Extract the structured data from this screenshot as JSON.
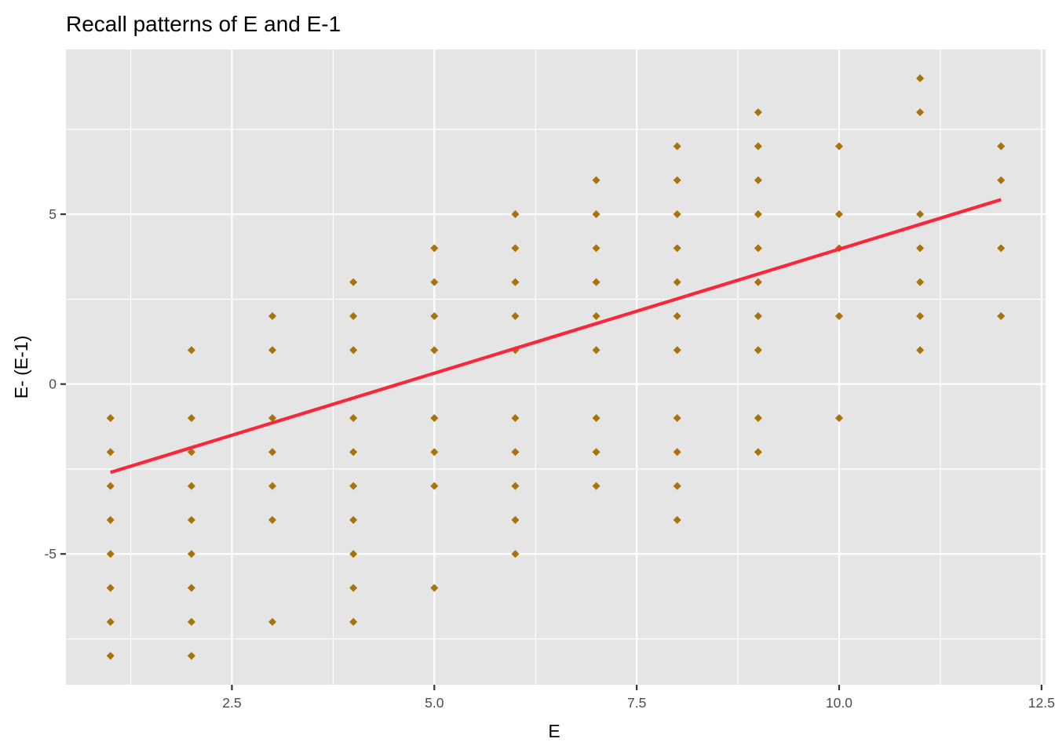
{
  "chart_data": {
    "type": "scatter",
    "title": "Recall patterns of E and E-1",
    "xlabel": "E",
    "ylabel": "E- (E-1)",
    "xlim": [
      0.45,
      12.55
    ],
    "ylim": [
      -8.85,
      9.85
    ],
    "x_ticks": [
      2.5,
      5.0,
      7.5,
      10.0,
      12.5
    ],
    "x_tick_labels": [
      "2.5",
      "5.0",
      "7.5",
      "10.0",
      "12.5"
    ],
    "y_ticks": [
      -5,
      0,
      5
    ],
    "y_tick_labels": [
      "-5",
      "0",
      "5"
    ],
    "grid": true,
    "legend": "none",
    "colors": {
      "panel": "#e5e5e5",
      "grid": "#ffffff",
      "points": "#a8730a",
      "trend": "#f8283a"
    },
    "points": [
      {
        "x": 1,
        "ys": [
          -1,
          -2,
          -3,
          -4,
          -5,
          -6,
          -7,
          -8
        ]
      },
      {
        "x": 2,
        "ys": [
          1,
          -1,
          -2,
          -3,
          -4,
          -5,
          -6,
          -7,
          -8
        ]
      },
      {
        "x": 3,
        "ys": [
          2,
          1,
          -1,
          -2,
          -3,
          -4,
          -7
        ]
      },
      {
        "x": 4,
        "ys": [
          3,
          2,
          1,
          -1,
          -2,
          -3,
          -4,
          -5,
          -6,
          -7
        ]
      },
      {
        "x": 5,
        "ys": [
          4,
          3,
          2,
          1,
          -1,
          -2,
          -3,
          -6
        ]
      },
      {
        "x": 6,
        "ys": [
          5,
          4,
          3,
          2,
          1,
          -1,
          -2,
          -3,
          -4,
          -5
        ]
      },
      {
        "x": 7,
        "ys": [
          6,
          5,
          4,
          3,
          2,
          1,
          -1,
          -2,
          -3
        ]
      },
      {
        "x": 8,
        "ys": [
          7,
          6,
          5,
          4,
          3,
          2,
          1,
          -1,
          -2,
          -3,
          -4
        ]
      },
      {
        "x": 9,
        "ys": [
          8,
          7,
          6,
          5,
          4,
          3,
          2,
          1,
          -1,
          -2
        ]
      },
      {
        "x": 10,
        "ys": [
          7,
          5,
          4,
          2,
          -1
        ]
      },
      {
        "x": 11,
        "ys": [
          9,
          8,
          5,
          4,
          3,
          2,
          1
        ]
      },
      {
        "x": 12,
        "ys": [
          7,
          6,
          4,
          2
        ]
      }
    ],
    "trend_line": {
      "x": [
        1,
        12
      ],
      "y": [
        -2.6,
        5.43
      ]
    }
  }
}
